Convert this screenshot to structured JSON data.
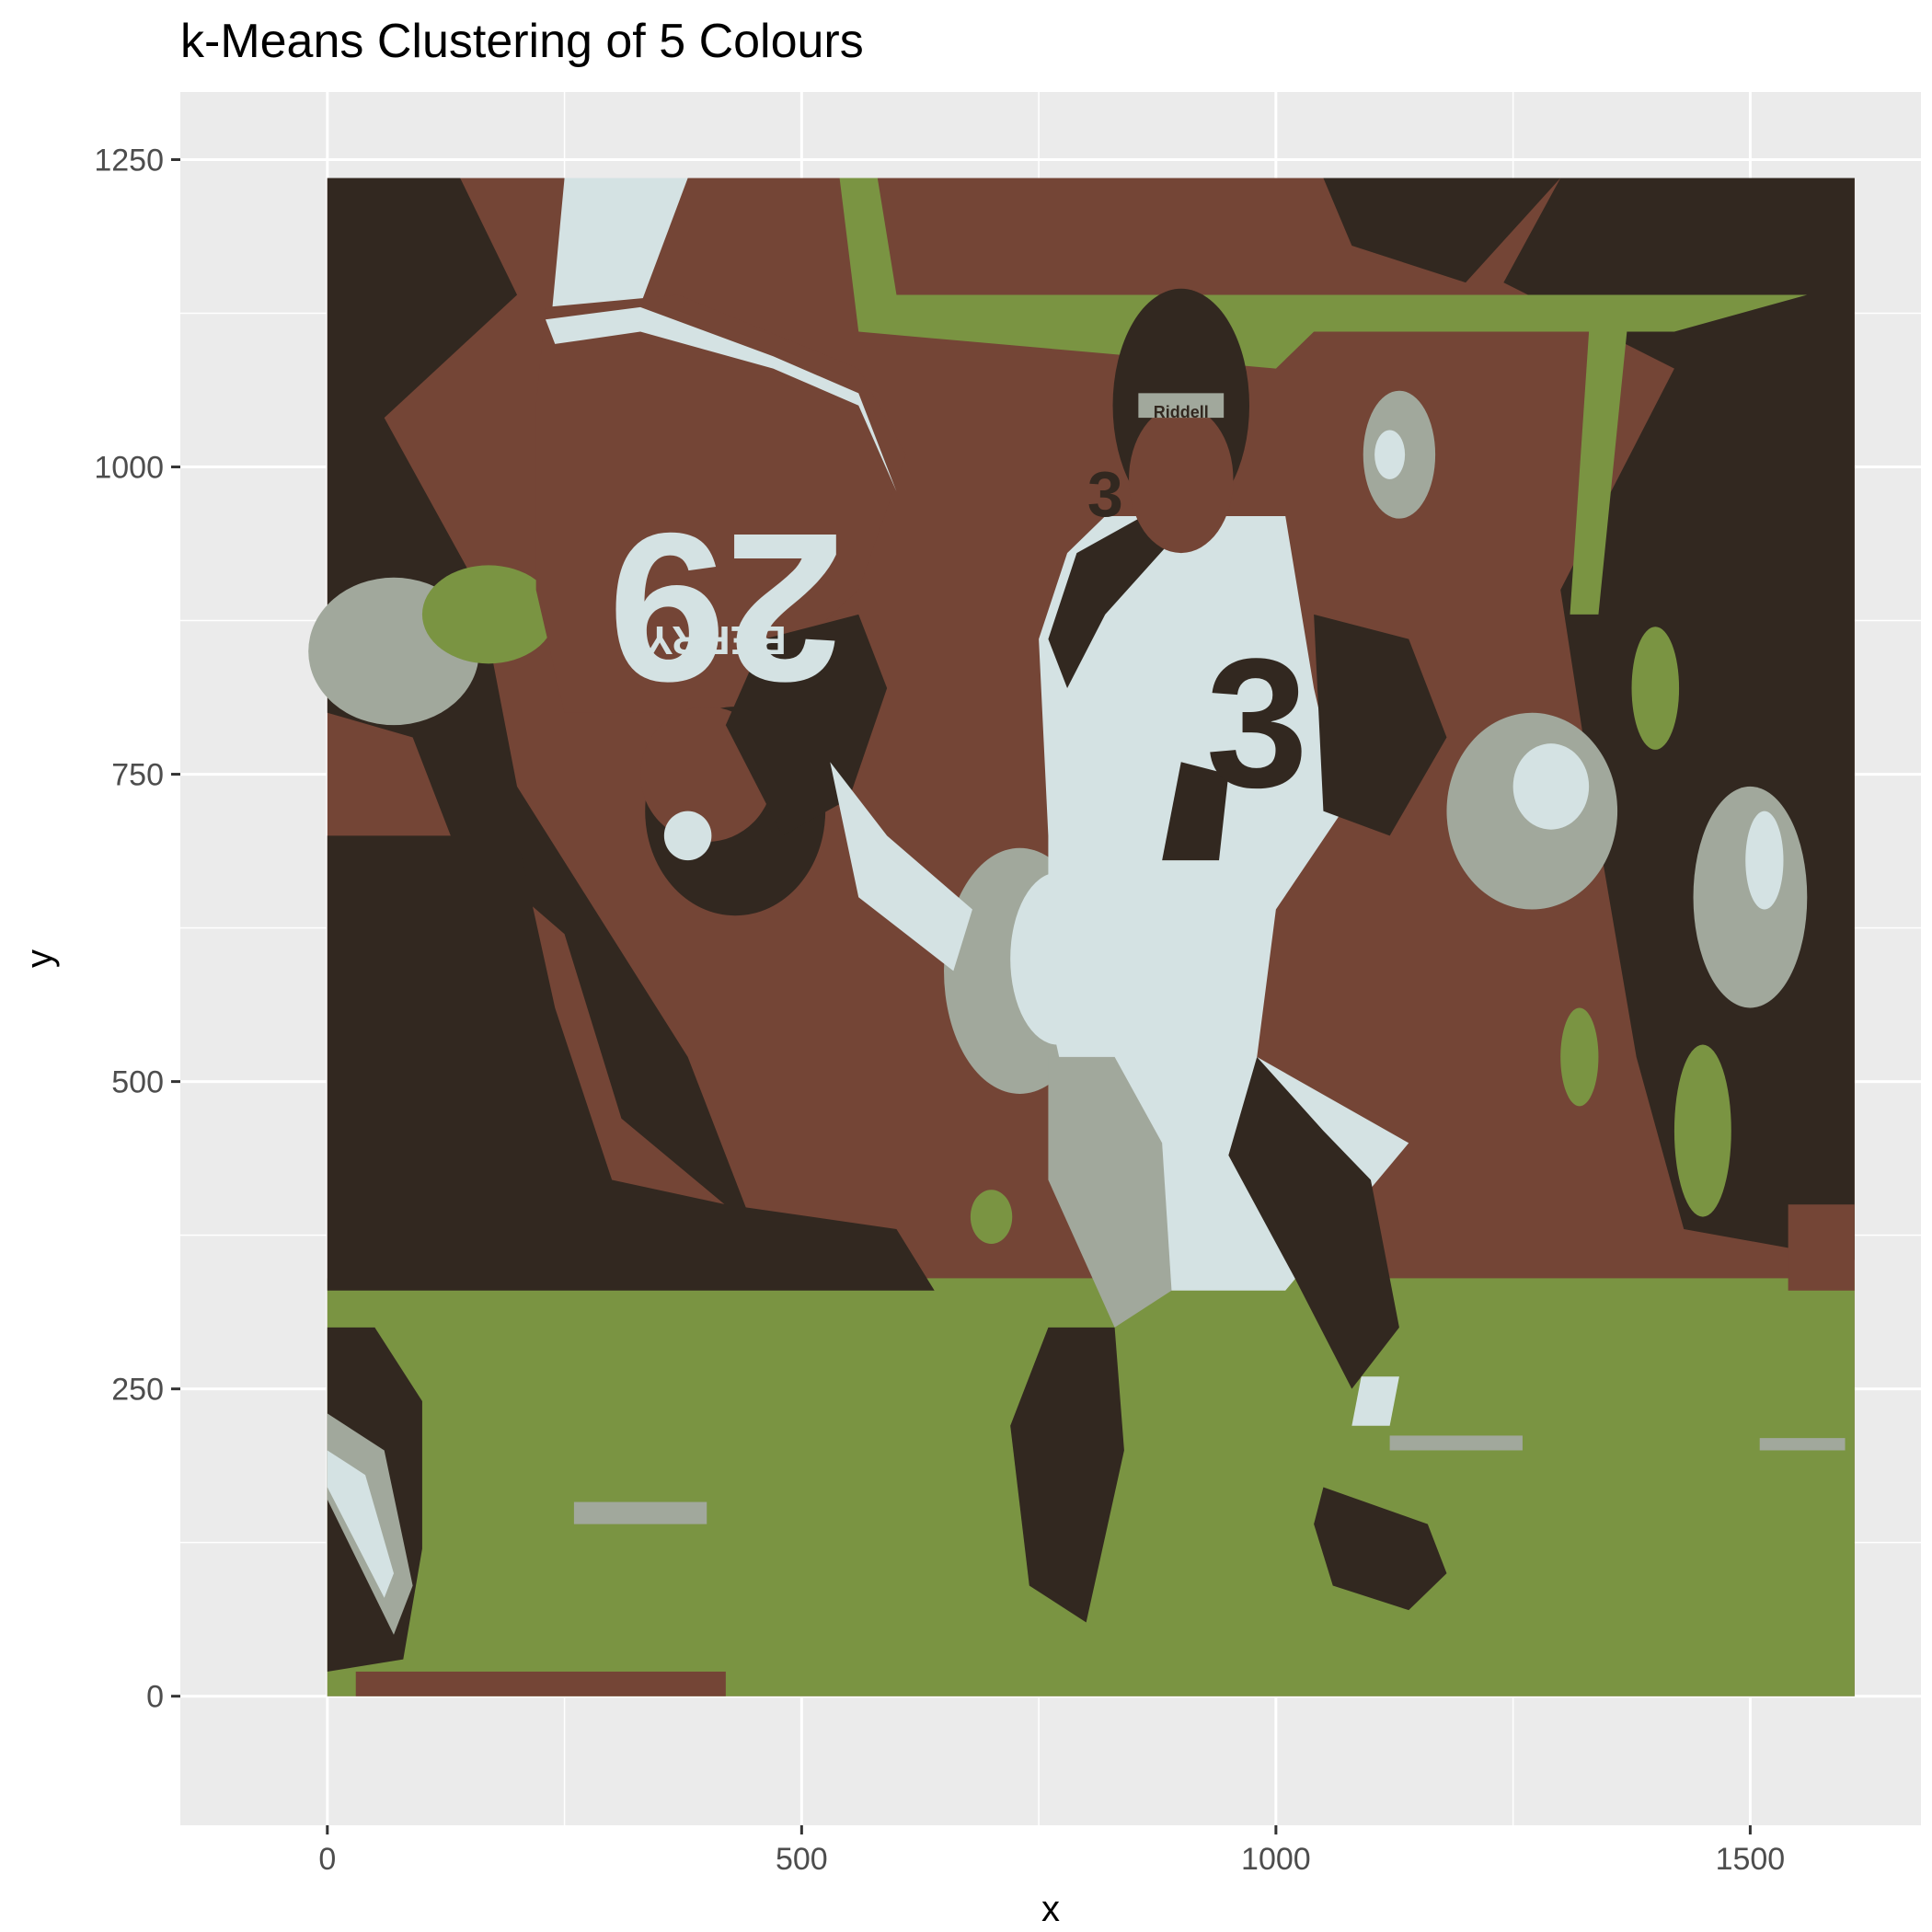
{
  "chart_data": {
    "type": "scatter",
    "title": "k-Means Clustering of 5 Colours",
    "xlabel": "x",
    "ylabel": "y",
    "xlim": [
      -155,
      1680
    ],
    "ylim": [
      -105,
      1305
    ],
    "x_ticks": [
      0,
      500,
      1000,
      1500
    ],
    "x_tick_labels": [
      "0",
      "500",
      "1000",
      "1500"
    ],
    "y_ticks": [
      0,
      250,
      500,
      750,
      1000,
      1250
    ],
    "y_tick_labels": [
      "0",
      "250",
      "500",
      "750",
      "1000",
      "1250"
    ],
    "grid": true,
    "legend": "none",
    "image_extent": {
      "x": [
        0,
        1610
      ],
      "y": [
        0,
        1235
      ]
    },
    "cluster_colors": [
      "#322820",
      "#744536",
      "#7a9442",
      "#a1a89c",
      "#d4e2e3"
    ],
    "overlay_text": [
      "BERRY",
      "29",
      "3",
      "Riddell"
    ]
  }
}
